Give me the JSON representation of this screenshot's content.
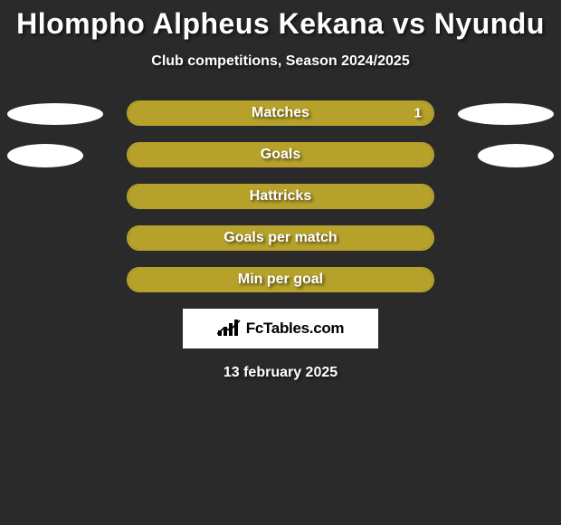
{
  "title": "Hlompho Alpheus Kekana vs Nyundu",
  "subtitle": "Club competitions, Season 2024/2025",
  "date": "13 february 2025",
  "colors": {
    "background": "#2a2a2a",
    "bar": "#b6a22b",
    "ellipse": "#ffffff",
    "text": "#ffffff",
    "badge_bg": "#ffffff",
    "badge_text": "#000000"
  },
  "badge": {
    "text": "FcTables.com"
  },
  "rows": [
    {
      "label": "Matches",
      "left_fill_pct": 0,
      "right_fill_pct": 100,
      "right_value": "1",
      "left_ellipse": {
        "w": 106,
        "h": 24
      },
      "right_ellipse": {
        "w": 106,
        "h": 24
      }
    },
    {
      "label": "Goals",
      "left_fill_pct": 100,
      "right_fill_pct": 0,
      "right_value": "",
      "left_ellipse": {
        "w": 84,
        "h": 26
      },
      "right_ellipse": {
        "w": 84,
        "h": 26
      }
    },
    {
      "label": "Hattricks",
      "left_fill_pct": 100,
      "right_fill_pct": 0,
      "right_value": "",
      "left_ellipse": null,
      "right_ellipse": null
    },
    {
      "label": "Goals per match",
      "left_fill_pct": 100,
      "right_fill_pct": 0,
      "right_value": "",
      "left_ellipse": null,
      "right_ellipse": null
    },
    {
      "label": "Min per goal",
      "left_fill_pct": 100,
      "right_fill_pct": 0,
      "right_value": "",
      "left_ellipse": null,
      "right_ellipse": null
    }
  ]
}
